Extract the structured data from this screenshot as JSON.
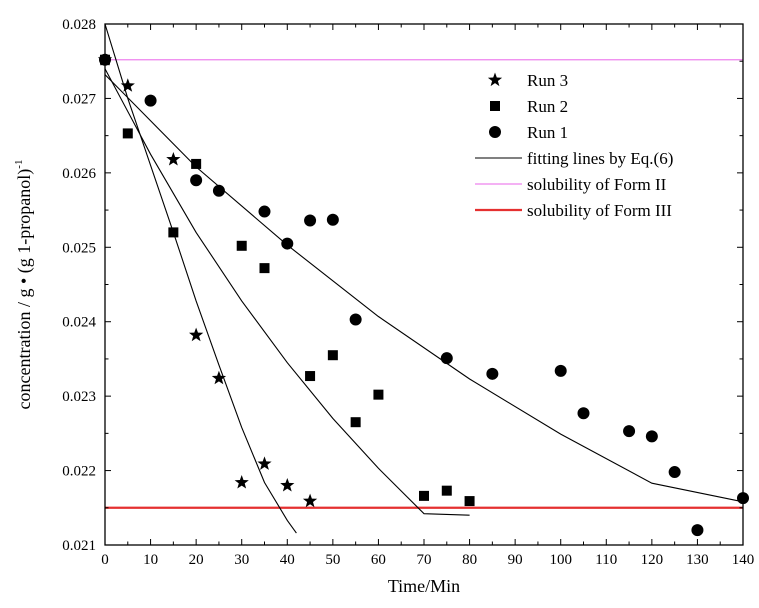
{
  "chart_data": {
    "type": "scatter",
    "xlabel": "Time/Min",
    "ylabel": "concentration / g • (g 1-propanol)",
    "ylabel_superscript": "-1",
    "xlim": [
      0,
      140
    ],
    "ylim": [
      0.021,
      0.028
    ],
    "x_ticks": [
      "0",
      "10",
      "20",
      "30",
      "40",
      "50",
      "60",
      "70",
      "80",
      "90",
      "100",
      "110",
      "120",
      "130",
      "140"
    ],
    "y_ticks": [
      "0.021",
      "0.022",
      "0.023",
      "0.024",
      "0.025",
      "0.026",
      "0.027",
      "0.028"
    ],
    "legend_position": "top-right",
    "grid": false,
    "series": [
      {
        "name": "Run 3",
        "marker": "star",
        "color": "#000000",
        "points": [
          [
            0,
            0.02752
          ],
          [
            5,
            0.02717
          ],
          [
            15,
            0.02618
          ],
          [
            20,
            0.02382
          ],
          [
            25,
            0.02324
          ],
          [
            30,
            0.02184
          ],
          [
            35,
            0.02209
          ],
          [
            40,
            0.0218
          ],
          [
            45,
            0.02159
          ]
        ]
      },
      {
        "name": "Run 2",
        "marker": "square",
        "color": "#000000",
        "points": [
          [
            0,
            0.02752
          ],
          [
            5,
            0.02653
          ],
          [
            15,
            0.0252
          ],
          [
            20,
            0.02612
          ],
          [
            30,
            0.02502
          ],
          [
            35,
            0.02472
          ],
          [
            45,
            0.02327
          ],
          [
            50,
            0.02355
          ],
          [
            55,
            0.02265
          ],
          [
            60,
            0.02302
          ],
          [
            70,
            0.02166
          ],
          [
            75,
            0.02173
          ],
          [
            80,
            0.02159
          ]
        ]
      },
      {
        "name": "Run 1",
        "marker": "circle",
        "color": "#000000",
        "points": [
          [
            0,
            0.02752
          ],
          [
            10,
            0.02697
          ],
          [
            20,
            0.0259
          ],
          [
            25,
            0.02576
          ],
          [
            35,
            0.02548
          ],
          [
            40,
            0.02505
          ],
          [
            45,
            0.02536
          ],
          [
            50,
            0.02537
          ],
          [
            55,
            0.02403
          ],
          [
            75,
            0.02351
          ],
          [
            85,
            0.0233
          ],
          [
            100,
            0.02334
          ],
          [
            105,
            0.02277
          ],
          [
            115,
            0.02253
          ],
          [
            120,
            0.02246
          ],
          [
            125,
            0.02198
          ],
          [
            130,
            0.0212
          ],
          [
            140,
            0.02163
          ]
        ]
      }
    ],
    "fit_lines": {
      "name": "fitting lines by Eq.(6)",
      "color": "#000000",
      "curves": [
        {
          "for": "Run 3",
          "points": [
            [
              0,
              0.028
            ],
            [
              5,
              0.027
            ],
            [
              10,
              0.0261
            ],
            [
              15,
              0.0252
            ],
            [
              20,
              0.02428
            ],
            [
              25,
              0.02342
            ],
            [
              30,
              0.02258
            ],
            [
              35,
              0.02184
            ],
            [
              40,
              0.02133
            ],
            [
              42,
              0.02116
            ]
          ]
        },
        {
          "for": "Run 2",
          "points": [
            [
              0,
              0.0274
            ],
            [
              10,
              0.02625
            ],
            [
              20,
              0.0252
            ],
            [
              30,
              0.02428
            ],
            [
              40,
              0.02345
            ],
            [
              50,
              0.0227
            ],
            [
              60,
              0.02203
            ],
            [
              70,
              0.02142
            ],
            [
              80,
              0.0214
            ]
          ]
        },
        {
          "for": "Run 1",
          "points": [
            [
              0,
              0.02732
            ],
            [
              20,
              0.02608
            ],
            [
              40,
              0.02503
            ],
            [
              60,
              0.02407
            ],
            [
              80,
              0.02323
            ],
            [
              100,
              0.02249
            ],
            [
              120,
              0.02183
            ],
            [
              140,
              0.02158
            ]
          ]
        }
      ]
    },
    "reference_lines": [
      {
        "name": "solubility of Form II",
        "y": 0.02752,
        "color": "#ee82ee"
      },
      {
        "name": "solubility of Form III",
        "y": 0.0215,
        "color": "#e53030"
      }
    ]
  }
}
